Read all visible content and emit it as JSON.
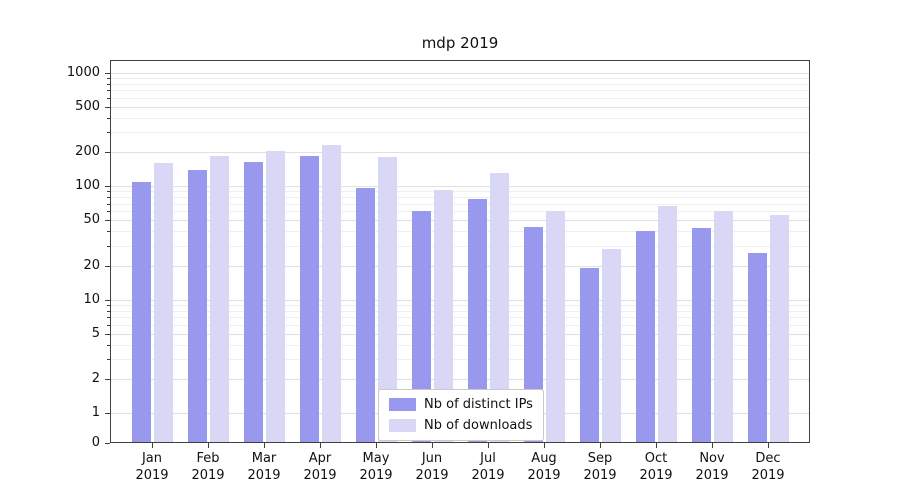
{
  "title": "mdp 2019",
  "chart_data": {
    "type": "bar",
    "title": "mdp 2019",
    "categories": [
      "Jan 2019",
      "Feb 2019",
      "Mar 2019",
      "Apr 2019",
      "May 2019",
      "Jun 2019",
      "Jul 2019",
      "Aug 2019",
      "Sep 2019",
      "Oct 2019",
      "Nov 2019",
      "Dec 2019"
    ],
    "series": [
      {
        "name": "Nb of distinct IPs",
        "color": "#9898ee",
        "values": [
          110,
          140,
          165,
          185,
          97,
          60,
          78,
          44,
          19,
          40,
          43,
          26
        ]
      },
      {
        "name": "Nb of downloads",
        "color": "#d8d8f6",
        "values": [
          160,
          185,
          205,
          230,
          180,
          92,
          130,
          60,
          28,
          67,
          60,
          56
        ]
      }
    ],
    "yscale": "symlog",
    "yticks": [
      0,
      1,
      2,
      5,
      10,
      20,
      50,
      100,
      200,
      500,
      1000
    ],
    "ylim": [
      0,
      1300
    ],
    "grid": true,
    "legend": {
      "position": "lower center",
      "entries": [
        "Nb of distinct IPs",
        "Nb of downloads"
      ]
    }
  }
}
